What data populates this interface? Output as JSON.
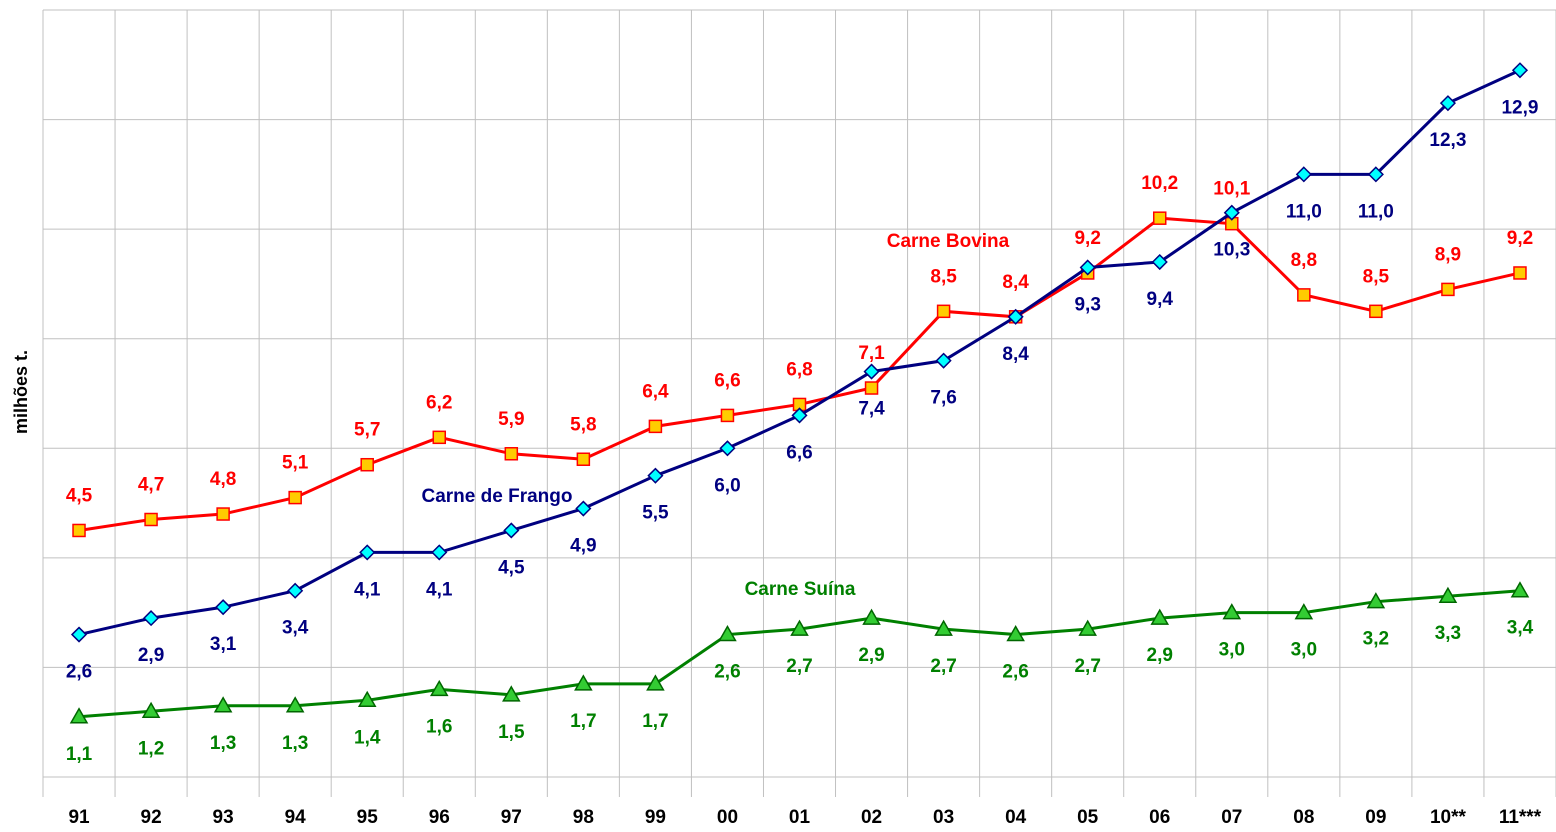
{
  "chart_data": {
    "type": "line",
    "ylabel": "milhões t.",
    "categories": [
      "91",
      "92",
      "93",
      "94",
      "95",
      "96",
      "97",
      "98",
      "99",
      "00",
      "01",
      "02",
      "03",
      "04",
      "05",
      "06",
      "07",
      "08",
      "09",
      "10**",
      "11***"
    ],
    "ylim": [
      0,
      14
    ],
    "yticks": [
      0,
      2,
      4,
      6,
      8,
      10,
      12,
      14
    ],
    "grid": true,
    "series": [
      {
        "name": "Carne Bovina",
        "color": "#ff0000",
        "marker": "square",
        "marker_color": "#ffcc00",
        "values": [
          4.5,
          4.7,
          4.8,
          5.1,
          5.7,
          6.2,
          5.9,
          5.8,
          6.4,
          6.6,
          6.8,
          7.1,
          8.5,
          8.4,
          9.2,
          10.2,
          10.1,
          8.8,
          8.5,
          8.9,
          9.2
        ],
        "value_labels": [
          "4,5",
          "4,7",
          "4,8",
          "5,1",
          "5,7",
          "6,2",
          "5,9",
          "5,8",
          "6,4",
          "6,6",
          "6,8",
          "7,1",
          "8,5",
          "8,4",
          "9,2",
          "10,2",
          "10,1",
          "8,8",
          "8,5",
          "8,9",
          "9,2"
        ]
      },
      {
        "name": "Carne de Frango",
        "color": "#000080",
        "marker": "diamond",
        "marker_color": "#00ffff",
        "values": [
          2.6,
          2.9,
          3.1,
          3.4,
          4.1,
          4.1,
          4.5,
          4.9,
          5.5,
          6.0,
          6.6,
          7.4,
          7.6,
          8.4,
          9.3,
          9.4,
          10.3,
          11.0,
          11.0,
          12.3,
          12.9
        ],
        "value_labels": [
          "2,6",
          "2,9",
          "3,1",
          "3,4",
          "4,1",
          "4,1",
          "4,5",
          "4,9",
          "5,5",
          "6,0",
          "6,6",
          "7,4",
          "7,6",
          "8,4",
          "9,3",
          "9,4",
          "10,3",
          "11,0",
          "11,0",
          "12,3",
          "12,9"
        ]
      },
      {
        "name": "Carne Suína",
        "color": "#008000",
        "marker": "triangle",
        "marker_color": "#33cc33",
        "values": [
          1.1,
          1.2,
          1.3,
          1.3,
          1.4,
          1.6,
          1.5,
          1.7,
          1.7,
          2.6,
          2.7,
          2.9,
          2.7,
          2.6,
          2.7,
          2.9,
          3.0,
          3.0,
          3.2,
          3.3,
          3.4
        ],
        "value_labels": [
          "1,1",
          "1,2",
          "1,3",
          "1,3",
          "1,4",
          "1,6",
          "1,5",
          "1,7",
          "1,7",
          "2,6",
          "2,7",
          "2,9",
          "2,7",
          "2,6",
          "2,7",
          "2,9",
          "3,0",
          "3,0",
          "3,2",
          "3,3",
          "3,4"
        ]
      }
    ]
  }
}
